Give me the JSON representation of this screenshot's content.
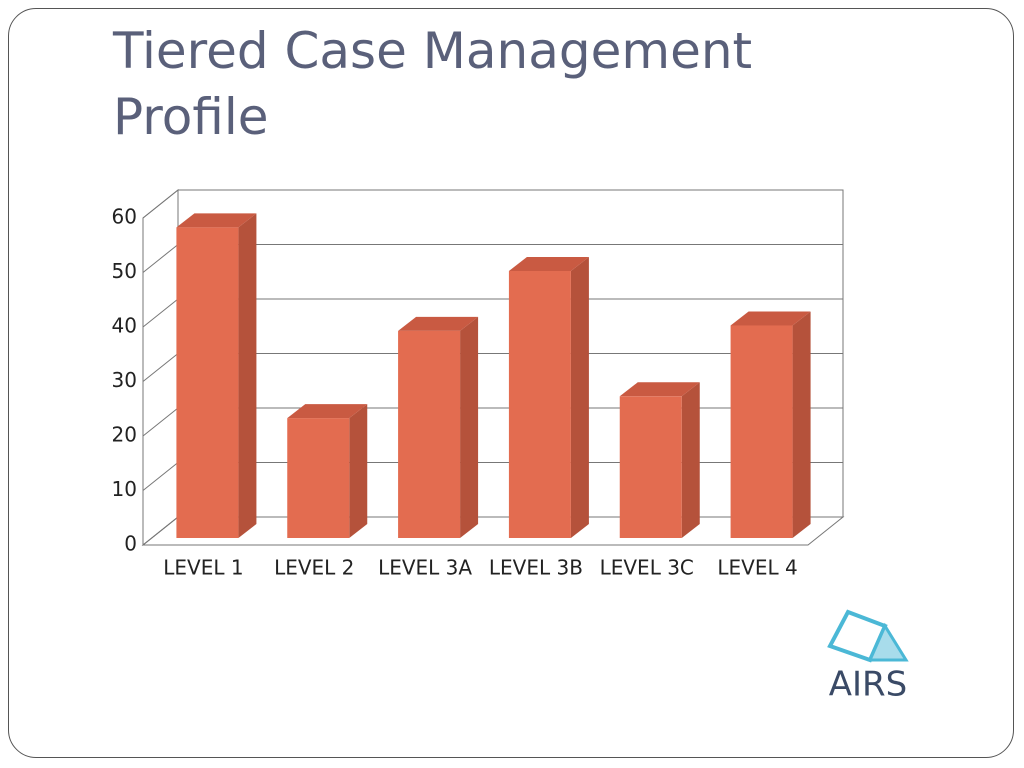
{
  "chart_data": {
    "type": "bar3d",
    "title": "Tiered Case Management Profile",
    "categories": [
      "LEVEL 1",
      "LEVEL 2",
      "LEVEL 3A",
      "LEVEL 3B",
      "LEVEL 3C",
      "LEVEL 4"
    ],
    "values": [
      57,
      22,
      38,
      49,
      26,
      39
    ],
    "color": "#e36c50",
    "ylim": [
      0,
      60
    ],
    "yticks": [
      0,
      10,
      20,
      30,
      40,
      50,
      60
    ],
    "grid": true
  },
  "logo": "AIRS"
}
